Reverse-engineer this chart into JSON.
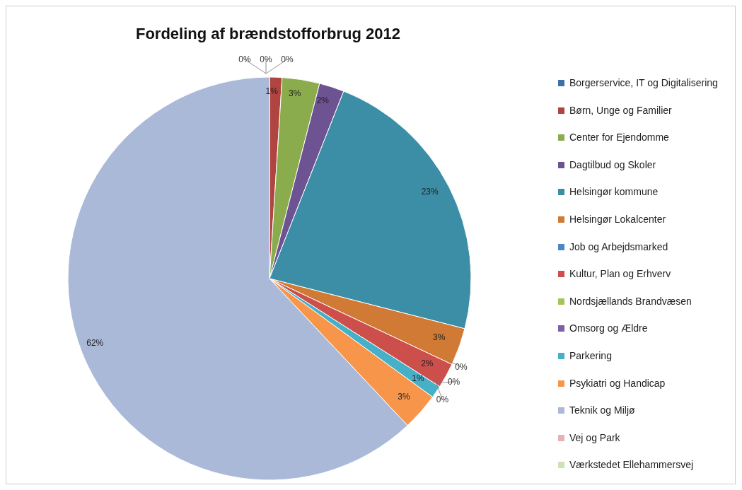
{
  "chart_data": {
    "type": "pie",
    "title": "Fordeling af brændstofforbrug 2012",
    "categories": [
      "Borgerservice, IT og Digitalisering",
      "Børn, Unge og Familier",
      "Center for Ejendomme",
      "Dagtilbud og Skoler",
      "Helsingør kommune",
      "Helsingør Lokalcenter",
      "Job og Arbejdsmarked",
      "Kultur, Plan og Erhverv",
      "Nordsjællands Brandvæsen",
      "Omsorg og Ældre",
      "Parkering",
      "Psykiatri og Handicap",
      "Teknik og Miljø",
      "Vej og Park",
      "Værkstedet Ellehammersvej"
    ],
    "values": [
      0,
      1,
      3,
      2,
      23,
      3,
      0,
      2,
      0,
      0,
      1,
      3,
      62,
      0,
      0
    ],
    "value_labels": [
      "0%",
      "1%",
      "3%",
      "2%",
      "23%",
      "3%",
      "0%",
      "2%",
      "0%",
      "0%",
      "1%",
      "3%",
      "62%",
      "0%",
      "0%"
    ],
    "colors": [
      "#3f6fa8",
      "#b04440",
      "#8aac4c",
      "#6e5393",
      "#3b8ea6",
      "#d07a35",
      "#4a86c8",
      "#cc4f4c",
      "#a3c65c",
      "#7e5ea6",
      "#46b0c8",
      "#f7964a",
      "#aab9d8",
      "#e6b3b2",
      "#cfe2b7"
    ],
    "legend": "right"
  }
}
